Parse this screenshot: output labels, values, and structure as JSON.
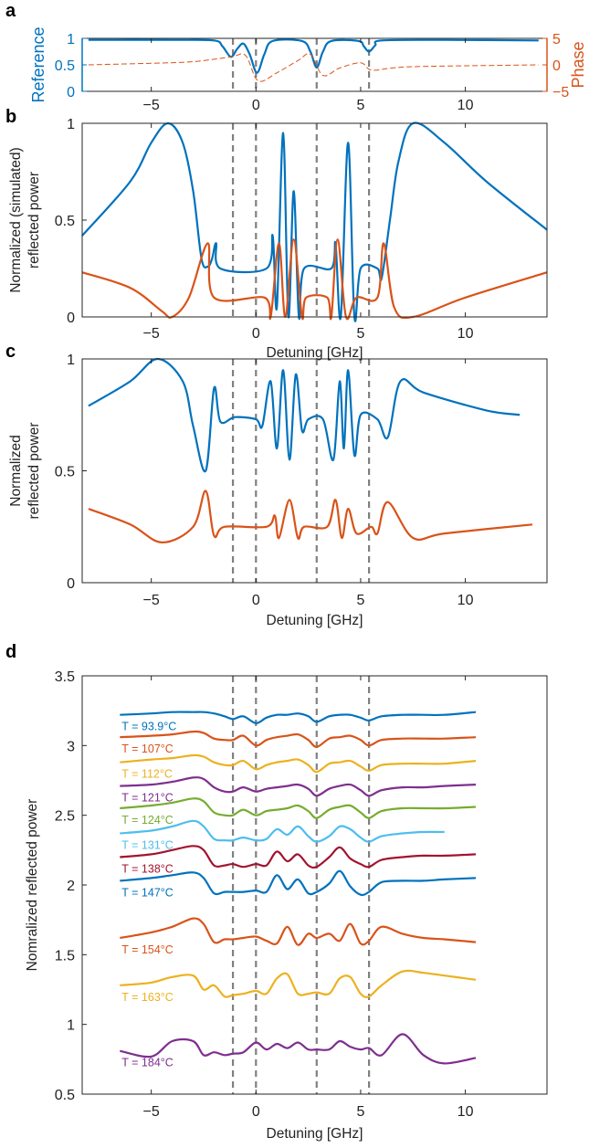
{
  "colors": {
    "blue": "#0072BD",
    "orange": "#D95319",
    "yellow": "#EDB120",
    "purple": "#7E2F8E",
    "green": "#77AC30",
    "lightblue": "#4DBEEE",
    "darkred": "#A2142F",
    "dashed": "#808080",
    "axis": "#262626"
  },
  "chart_data": [
    {
      "panel": "a",
      "type": "line",
      "xlabel": "",
      "ylabel": "Reference",
      "ylabel_right": "Phase",
      "xlim": [
        -8.3,
        13.9
      ],
      "ylim": [
        0,
        1
      ],
      "ylim_right": [
        -5,
        5
      ],
      "xticks": [
        -5,
        0,
        5,
        10
      ],
      "xtick_labels": [
        "−5",
        "0",
        "5",
        "10"
      ],
      "yticks": [
        0,
        0.5,
        1
      ],
      "ytick_labels": [
        "0",
        "0.5",
        "1"
      ],
      "yticks_right": [
        -5,
        0,
        5
      ],
      "ytick_labels_right": [
        "−5",
        "0",
        "5"
      ],
      "vlines": [
        -1.1,
        0,
        2.9,
        5.4
      ],
      "series": [
        {
          "name": "Reference",
          "color": "blue",
          "axis": "left",
          "style": "solid",
          "x": [
            -8,
            -4,
            -2,
            -1.6,
            -1.2,
            -0.9,
            -0.6,
            -0.3,
            0.05,
            0.4,
            0.8,
            2.2,
            2.6,
            2.9,
            3.2,
            3.6,
            4.9,
            5.15,
            5.4,
            5.7,
            6,
            9,
            13.5
          ],
          "y": [
            0.97,
            0.97,
            0.96,
            0.85,
            0.65,
            0.8,
            0.9,
            0.7,
            0.35,
            0.7,
            0.95,
            0.95,
            0.75,
            0.45,
            0.75,
            0.95,
            0.95,
            0.85,
            0.75,
            0.87,
            0.96,
            0.97,
            0.96
          ]
        },
        {
          "name": "Phase",
          "color": "orange",
          "axis": "right",
          "style": "dashed",
          "x": [
            -8,
            -5,
            -3,
            -1.2,
            -0.5,
            0.1,
            1,
            2,
            2.6,
            3.2,
            4,
            5,
            5.5,
            6.5,
            8,
            13.5
          ],
          "y": [
            0,
            0.3,
            0.6,
            1.5,
            1.8,
            -3,
            -1.5,
            0.8,
            2,
            -2,
            -0.6,
            0.4,
            -1,
            -0.6,
            -0.3,
            0
          ]
        }
      ]
    },
    {
      "panel": "b",
      "type": "line",
      "xlabel": "Detuning [GHz]",
      "ylabel": [
        "Normalized (simulated)",
        "reflected power"
      ],
      "xlim": [
        -8.3,
        13.9
      ],
      "ylim": [
        0,
        1
      ],
      "xticks": [
        -5,
        0,
        5,
        10
      ],
      "xtick_labels": [
        "−5",
        "0",
        "5",
        "10"
      ],
      "yticks": [
        0,
        0.5,
        1
      ],
      "ytick_labels": [
        "0",
        "0.5",
        "1"
      ],
      "vlines": [
        -1.1,
        0,
        2.9,
        5.4
      ],
      "series": [
        {
          "name": "blue",
          "color": "blue",
          "x": [
            -8.3,
            -6,
            -5,
            -4.2,
            -3.5,
            -3,
            -2.6,
            -2.3,
            -2.1,
            -1.9,
            -1.7,
            0.5,
            0.8,
            1.0,
            1.3,
            1.55,
            1.8,
            2.05,
            2.3,
            3.6,
            3.8,
            4.05,
            4.4,
            4.7,
            5.0,
            5.8,
            6.0,
            6.4,
            6.8,
            7.5,
            9,
            11,
            13.9
          ],
          "y": [
            0.42,
            0.7,
            0.9,
            1.0,
            0.9,
            0.65,
            0.3,
            0.26,
            0.3,
            0.38,
            0.25,
            0.25,
            0.42,
            0.05,
            0.95,
            0.0,
            0.65,
            0.0,
            0.25,
            0.25,
            0.38,
            0.0,
            0.9,
            0.0,
            0.25,
            0.25,
            0.2,
            0.5,
            0.8,
            1.0,
            0.9,
            0.7,
            0.45
          ]
        },
        {
          "name": "orange",
          "color": "orange",
          "x": [
            -8.3,
            -6,
            -4.5,
            -4,
            -3.2,
            -2.3,
            -2.0,
            0.4,
            0.7,
            1.1,
            1.4,
            1.8,
            2.2,
            2.4,
            3.4,
            3.6,
            3.9,
            4.3,
            4.8,
            5.8,
            6.1,
            6.6,
            7.5,
            10,
            13.9
          ],
          "y": [
            0.23,
            0.15,
            0.03,
            0.0,
            0.1,
            0.38,
            0.1,
            0.1,
            0.0,
            0.38,
            0.0,
            0.4,
            0.0,
            0.1,
            0.1,
            0.0,
            0.4,
            0.0,
            0.1,
            0.1,
            0.38,
            0.05,
            0.0,
            0.1,
            0.23
          ]
        }
      ]
    },
    {
      "panel": "c",
      "type": "line",
      "xlabel": "Detuning [GHz]",
      "ylabel": [
        "Normalized",
        "reflected power"
      ],
      "xlim": [
        -8.3,
        13.9
      ],
      "ylim": [
        0,
        1
      ],
      "xticks": [
        -5,
        0,
        5,
        10
      ],
      "xtick_labels": [
        "−5",
        "0",
        "5",
        "10"
      ],
      "yticks": [
        0,
        0.5,
        1
      ],
      "ytick_labels": [
        "0",
        "0.5",
        "1"
      ],
      "vlines": [
        -1.1,
        0,
        2.9,
        5.4
      ],
      "series": [
        {
          "name": "blue",
          "color": "blue",
          "x": [
            -8,
            -6,
            -4.7,
            -3.5,
            -3,
            -2.4,
            -2.0,
            -1.7,
            -1,
            0,
            0.3,
            0.7,
            1.0,
            1.3,
            1.6,
            1.9,
            2.2,
            2.5,
            3.2,
            3.7,
            4.0,
            4.2,
            4.4,
            4.7,
            5.0,
            5.8,
            6.3,
            6.9,
            8,
            11,
            12.6
          ],
          "y": [
            0.79,
            0.9,
            1.0,
            0.9,
            0.7,
            0.5,
            0.87,
            0.72,
            0.74,
            0.73,
            0.7,
            0.9,
            0.6,
            0.95,
            0.55,
            0.93,
            0.68,
            0.73,
            0.73,
            0.55,
            0.9,
            0.6,
            0.95,
            0.57,
            0.75,
            0.73,
            0.65,
            0.9,
            0.85,
            0.77,
            0.75
          ]
        },
        {
          "name": "orange",
          "color": "orange",
          "x": [
            -8,
            -6,
            -4.5,
            -3,
            -2.4,
            -2,
            -1.5,
            0.5,
            0.9,
            1.1,
            1.6,
            2.0,
            2.3,
            3.4,
            3.8,
            4.1,
            4.4,
            4.8,
            5.5,
            5.8,
            6.3,
            7.5,
            9,
            13.2
          ],
          "y": [
            0.33,
            0.26,
            0.18,
            0.25,
            0.41,
            0.21,
            0.25,
            0.25,
            0.3,
            0.2,
            0.37,
            0.2,
            0.25,
            0.25,
            0.37,
            0.2,
            0.33,
            0.22,
            0.25,
            0.22,
            0.36,
            0.2,
            0.22,
            0.26
          ]
        }
      ]
    },
    {
      "panel": "d",
      "type": "line",
      "xlabel": "Detuning [GHz]",
      "ylabel": "Nomralized reflected power",
      "xlim": [
        -8.3,
        13.9
      ],
      "ylim": [
        0.5,
        3.5
      ],
      "xticks": [
        -5,
        0,
        5,
        10
      ],
      "xtick_labels": [
        "−5",
        "0",
        "5",
        "10"
      ],
      "yticks": [
        0.5,
        1,
        1.5,
        2,
        2.5,
        3,
        3.5
      ],
      "ytick_labels": [
        "0.5",
        "1",
        "1.5",
        "2",
        "2.5",
        "3",
        "3.5"
      ],
      "vlines": [
        -1.1,
        0,
        2.9,
        5.4
      ],
      "x": [
        -6.5,
        -5,
        -4,
        -3,
        -2.5,
        -2,
        -1.5,
        -1.1,
        -0.6,
        0,
        0.5,
        1,
        1.5,
        2,
        2.5,
        2.9,
        3.5,
        4,
        4.5,
        5,
        5.4,
        6,
        7,
        8,
        9,
        10.5
      ],
      "series": [
        {
          "name": "T = 93.9°C",
          "color": "blue",
          "y": [
            3.22,
            3.23,
            3.24,
            3.24,
            3.24,
            3.23,
            3.21,
            3.19,
            3.21,
            3.16,
            3.2,
            3.22,
            3.22,
            3.23,
            3.21,
            3.17,
            3.21,
            3.22,
            3.22,
            3.2,
            3.18,
            3.21,
            3.22,
            3.22,
            3.22,
            3.24
          ]
        },
        {
          "name": "T = 107°C",
          "color": "orange",
          "y": [
            3.06,
            3.07,
            3.08,
            3.1,
            3.09,
            3.05,
            3.04,
            3.04,
            3.07,
            3.0,
            3.04,
            3.06,
            3.07,
            3.08,
            3.04,
            2.99,
            3.05,
            3.06,
            3.07,
            3.04,
            3.0,
            3.04,
            3.05,
            3.05,
            3.05,
            3.06
          ]
        },
        {
          "name": "T = 112°C",
          "color": "yellow",
          "y": [
            2.88,
            2.9,
            2.91,
            2.93,
            2.92,
            2.88,
            2.86,
            2.86,
            2.89,
            2.83,
            2.86,
            2.88,
            2.89,
            2.9,
            2.86,
            2.81,
            2.87,
            2.88,
            2.89,
            2.85,
            2.82,
            2.86,
            2.87,
            2.87,
            2.87,
            2.89
          ]
        },
        {
          "name": "T = 121°C",
          "color": "purple",
          "y": [
            2.71,
            2.72,
            2.74,
            2.77,
            2.76,
            2.7,
            2.67,
            2.67,
            2.7,
            2.67,
            2.69,
            2.7,
            2.71,
            2.72,
            2.69,
            2.64,
            2.69,
            2.71,
            2.72,
            2.68,
            2.64,
            2.68,
            2.7,
            2.7,
            2.71,
            2.72
          ]
        },
        {
          "name": "T = 124°C",
          "color": "green",
          "y": [
            2.55,
            2.57,
            2.59,
            2.62,
            2.6,
            2.52,
            2.5,
            2.5,
            2.54,
            2.5,
            2.53,
            2.54,
            2.55,
            2.57,
            2.53,
            2.48,
            2.54,
            2.56,
            2.57,
            2.52,
            2.48,
            2.53,
            2.55,
            2.55,
            2.55,
            2.56
          ]
        },
        {
          "name": "T = 131°C",
          "color": "lightblue",
          "y": [
            2.37,
            2.39,
            2.42,
            2.46,
            2.42,
            2.33,
            2.32,
            2.32,
            2.34,
            2.32,
            2.33,
            2.4,
            2.36,
            2.42,
            2.35,
            2.31,
            2.35,
            2.42,
            2.4,
            2.34,
            2.31,
            2.35,
            2.37,
            2.38,
            2.38,
            null
          ]
        },
        {
          "name": "T = 138°C",
          "color": "darkred",
          "y": [
            2.2,
            2.22,
            2.25,
            2.28,
            2.25,
            2.14,
            2.14,
            2.15,
            2.13,
            2.15,
            2.14,
            2.24,
            2.17,
            2.22,
            2.14,
            2.13,
            2.2,
            2.27,
            2.19,
            2.15,
            2.13,
            2.18,
            2.2,
            2.21,
            2.21,
            2.22
          ]
        },
        {
          "name": "T = 147°C",
          "color": "blue",
          "y": [
            2.03,
            2.05,
            2.07,
            2.09,
            2.05,
            1.94,
            1.95,
            1.95,
            1.95,
            1.96,
            1.95,
            2.07,
            1.97,
            2.04,
            1.94,
            1.95,
            2.01,
            2.1,
            1.99,
            1.93,
            1.95,
            2.02,
            2.03,
            2.03,
            2.04,
            2.05
          ]
        },
        {
          "name": "T = 154°C",
          "color": "orange",
          "y": [
            1.62,
            1.66,
            1.7,
            1.76,
            1.72,
            1.59,
            1.61,
            1.61,
            1.62,
            1.63,
            1.6,
            1.58,
            1.7,
            1.57,
            1.65,
            1.62,
            1.65,
            1.6,
            1.72,
            1.58,
            1.6,
            1.7,
            1.65,
            1.62,
            1.61,
            1.59
          ]
        },
        {
          "name": "T = 163°C",
          "color": "yellow",
          "y": [
            1.28,
            1.3,
            1.34,
            1.35,
            1.25,
            1.28,
            1.2,
            1.21,
            1.22,
            1.24,
            1.22,
            1.33,
            1.36,
            1.22,
            1.22,
            1.23,
            1.22,
            1.33,
            1.34,
            1.22,
            1.2,
            1.28,
            1.38,
            1.37,
            1.35,
            1.32
          ]
        },
        {
          "name": "T = 184°C",
          "color": "purple",
          "y": [
            0.81,
            0.77,
            0.88,
            0.88,
            0.78,
            0.8,
            0.78,
            0.79,
            0.8,
            0.87,
            0.82,
            0.86,
            0.83,
            0.87,
            0.82,
            0.82,
            0.82,
            0.88,
            0.84,
            0.82,
            0.83,
            0.78,
            0.93,
            0.78,
            0.72,
            0.76
          ]
        }
      ]
    }
  ],
  "panel_letters": [
    "a",
    "b",
    "c",
    "d"
  ]
}
